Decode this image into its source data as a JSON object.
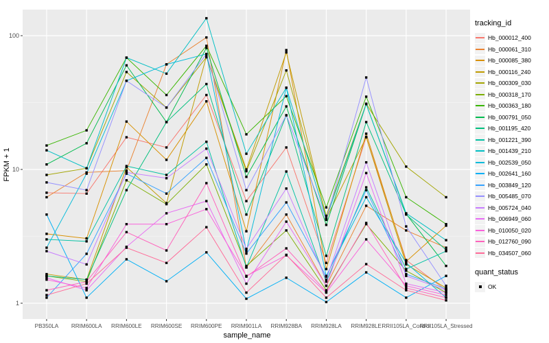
{
  "legend": {
    "tracking_title": "tracking_id",
    "quant_title": "quant_status",
    "quant_items": [
      {
        "label": "OK",
        "point_shape": "square",
        "point_color": "#000000"
      }
    ]
  },
  "style": {
    "panel_bg": "#EBEBEB",
    "grid_major_color": "#FFFFFF",
    "grid_minor_color": "#FFFFFF",
    "tick_label_color": "#4D4D4D",
    "axis_title_color": "#000000",
    "legend_key_bg": "#F2F2F2"
  },
  "chart_data": {
    "type": "line",
    "title": "",
    "xlabel": "sample_name",
    "ylabel": "FPKM + 1",
    "yscale": "log10",
    "yticks": [
      1,
      10,
      100
    ],
    "ylim": [
      0.82,
      155
    ],
    "grid": true,
    "legend_position": "right",
    "point_shape": "square",
    "point_color": "#000000",
    "categories": [
      "PB350LA",
      "RRIM600LA",
      "RRIM600LE",
      "RRIM600SE",
      "RRIM600PE",
      "RRIM901LA",
      "RRIM928BA",
      "RRIM928LA",
      "RRIM928LE",
      "RRII105LA_Control",
      "RRII105LA_Stressed"
    ],
    "series": [
      {
        "name": "Hb_000012_400",
        "color": "#F8766D",
        "values": [
          6.7,
          6.6,
          17.4,
          14.6,
          36,
          5.8,
          14.6,
          2.0,
          17.5,
          2.1,
          1.25
        ]
      },
      {
        "name": "Hb_000061_310",
        "color": "#EA8331",
        "values": [
          6.2,
          9.5,
          9.8,
          61,
          97,
          1.85,
          4.6,
          1.35,
          5.35,
          3.5,
          2.6
        ]
      },
      {
        "name": "Hb_000085_380",
        "color": "#D89000",
        "values": [
          3.3,
          3.05,
          22.8,
          11.8,
          32.3,
          3.45,
          78,
          1.8,
          18.5,
          2.05,
          3.8
        ]
      },
      {
        "name": "Hb_000116_240",
        "color": "#C09B00",
        "values": [
          1.65,
          1.5,
          10.4,
          5.6,
          70,
          10.0,
          75,
          4.3,
          17.4,
          1.95,
          1.3
        ]
      },
      {
        "name": "Hb_000309_030",
        "color": "#A3A500",
        "values": [
          9.1,
          10.2,
          53.5,
          29,
          69,
          9.7,
          55,
          4.5,
          31,
          10.5,
          6.2
        ]
      },
      {
        "name": "Hb_000318_170",
        "color": "#7CAE00",
        "values": [
          1.6,
          1.45,
          8.3,
          5.5,
          10.9,
          1.9,
          3.5,
          1.25,
          3.9,
          1.75,
          1.2
        ]
      },
      {
        "name": "Hb_000363_180",
        "color": "#39B600",
        "values": [
          15.1,
          19.6,
          68.5,
          36,
          84,
          18.3,
          35.3,
          5.2,
          35,
          6.2,
          3.9
        ]
      },
      {
        "name": "Hb_000791_050",
        "color": "#00BB4E",
        "values": [
          10.9,
          15.7,
          60,
          22.6,
          81,
          8.8,
          29.6,
          3.85,
          30.8,
          4.65,
          1.9
        ]
      },
      {
        "name": "Hb_001195_420",
        "color": "#00BF7D",
        "values": [
          1.6,
          1.5,
          7.0,
          22.6,
          43.5,
          4.6,
          25.4,
          2.26,
          22.6,
          4.6,
          2.5
        ]
      },
      {
        "name": "Hb_001221_390",
        "color": "#00C1A3",
        "values": [
          3.0,
          2.9,
          10.6,
          9.1,
          16.1,
          1.85,
          9.65,
          1.45,
          7.35,
          1.8,
          2.45
        ]
      },
      {
        "name": "Hb_001439_210",
        "color": "#00BFC4",
        "values": [
          13.9,
          10.2,
          68.5,
          52,
          135,
          13.1,
          40.8,
          4.3,
          30.8,
          4.7,
          2.96
        ]
      },
      {
        "name": "Hb_002539_050",
        "color": "#00BBDA",
        "values": [
          2.6,
          9.3,
          46,
          61,
          73,
          2.45,
          40.8,
          1.6,
          6.2,
          2.0,
          1.1
        ]
      },
      {
        "name": "Hb_002641_160",
        "color": "#00B0F6",
        "values": [
          4.6,
          1.1,
          2.13,
          1.46,
          2.4,
          1.08,
          1.55,
          1.02,
          1.7,
          1.1,
          1.6
        ]
      },
      {
        "name": "Hb_003849_120",
        "color": "#35A2FF",
        "values": [
          1.1,
          2.34,
          9.3,
          6.6,
          12.2,
          2.35,
          5.67,
          1.58,
          7.0,
          1.65,
          1.28
        ]
      },
      {
        "name": "Hb_005485_070",
        "color": "#9590FF",
        "values": [
          8.0,
          7.0,
          46,
          29,
          73,
          7.0,
          25.4,
          4.2,
          48.7,
          3.75,
          1.35
        ]
      },
      {
        "name": "Hb_005724_040",
        "color": "#C77CFF",
        "values": [
          2.45,
          1.95,
          9.5,
          8.6,
          14.3,
          2.55,
          7.2,
          1.5,
          11.3,
          1.6,
          1.25
        ]
      },
      {
        "name": "Hb_006949_060",
        "color": "#E76BF3",
        "values": [
          1.55,
          1.25,
          2.64,
          4.7,
          5.8,
          1.4,
          4.07,
          1.35,
          9.4,
          1.4,
          1.2
        ]
      },
      {
        "name": "Hb_010050_020",
        "color": "#FA62DB",
        "values": [
          1.5,
          1.3,
          3.9,
          3.9,
          5.05,
          1.6,
          2.28,
          1.2,
          3.0,
          1.35,
          1.15
        ]
      },
      {
        "name": "Hb_012760_090",
        "color": "#FF62BC",
        "values": [
          1.25,
          1.45,
          3.4,
          2.48,
          7.9,
          1.58,
          2.57,
          1.22,
          3.98,
          1.3,
          1.1
        ]
      },
      {
        "name": "Hb_034507_060",
        "color": "#FF6A98",
        "values": [
          1.15,
          1.4,
          2.6,
          2.0,
          3.7,
          1.2,
          2.3,
          1.1,
          1.96,
          1.25,
          1.05
        ]
      }
    ]
  }
}
